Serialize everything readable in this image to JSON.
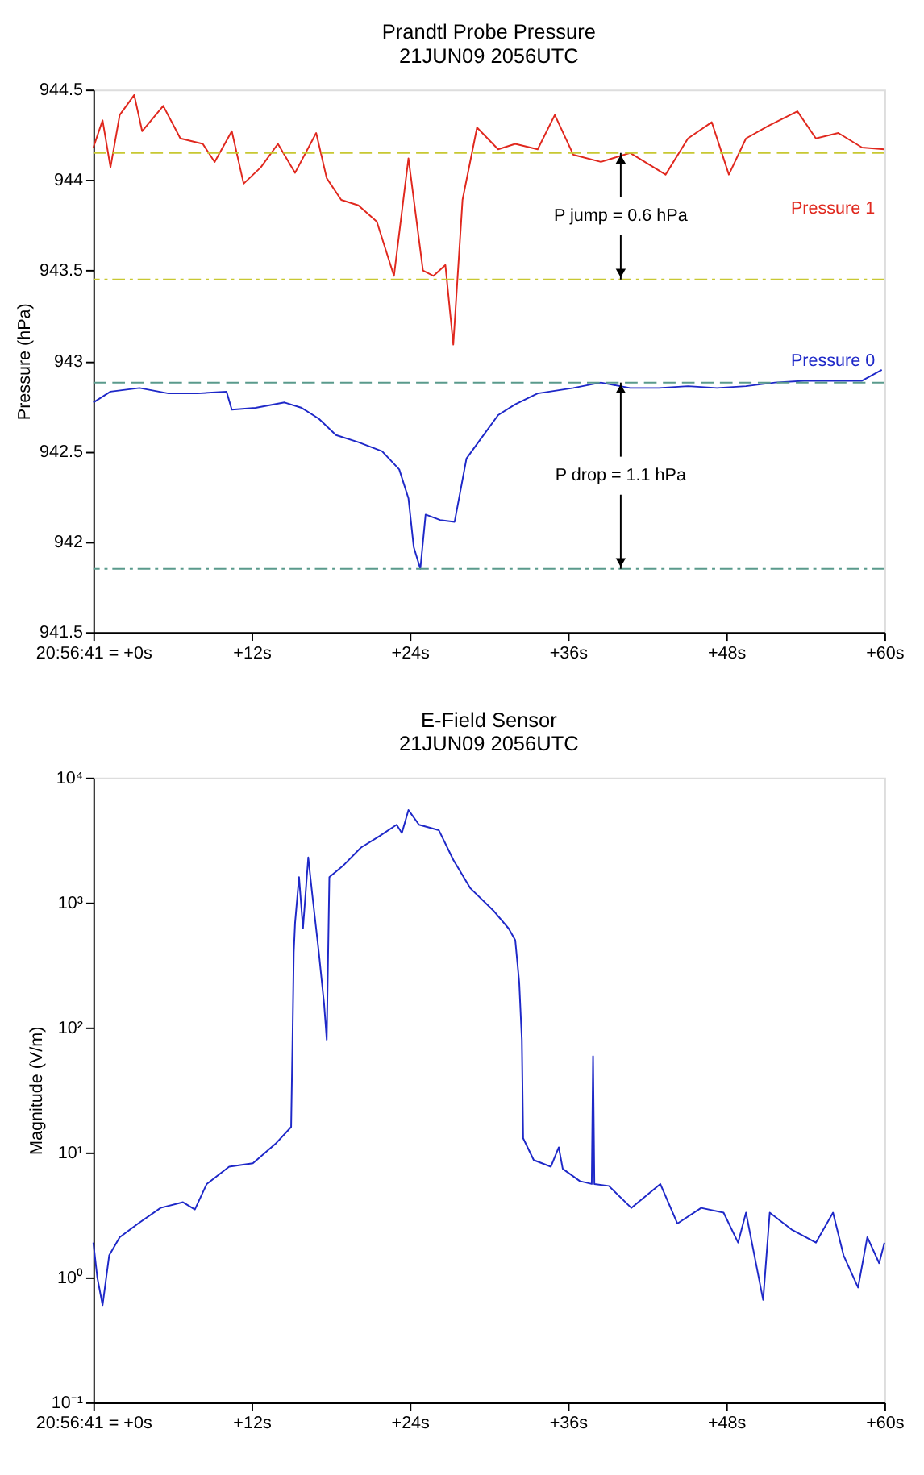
{
  "chart_data": [
    {
      "type": "line",
      "title": "Prandtl Probe Pressure",
      "subtitle": "21JUN09 2056UTC",
      "ylabel": "Pressure (hPa)",
      "xlim": [
        0,
        60
      ],
      "xticks": [
        {
          "value": 0,
          "label": "20:56:41 = +0s"
        },
        {
          "value": 12,
          "label": "+12s"
        },
        {
          "value": 24,
          "label": "+24s"
        },
        {
          "value": 36,
          "label": "+36s"
        },
        {
          "value": 48,
          "label": "+48s"
        },
        {
          "value": 60,
          "label": "+60s"
        }
      ],
      "ylim": [
        941.5,
        944.5
      ],
      "yticks": [
        941.5,
        942,
        942.5,
        943,
        943.5,
        944,
        944.5
      ],
      "grid": false,
      "legend": false,
      "marker": "none",
      "line_style": "solid",
      "series": [
        {
          "name": "Pressure 1",
          "color": "#e0281e",
          "x": [
            0,
            0.7,
            1.3,
            2.0,
            3.1,
            3.7,
            5.3,
            6.6,
            8.3,
            9.2,
            10.5,
            11.4,
            12.7,
            14.0,
            15.3,
            16.9,
            17.7,
            18.8,
            20.1,
            21.5,
            22.8,
            23.9,
            25.0,
            25.8,
            26.7,
            27.3,
            28.0,
            29.1,
            30.7,
            32.0,
            33.7,
            35.0,
            36.4,
            38.5,
            40.7,
            43.4,
            45.1,
            46.9,
            48.2,
            49.5,
            51.2,
            53.4,
            54.8,
            56.5,
            58.3,
            60
          ],
          "values": [
            944.18,
            944.33,
            944.07,
            944.36,
            944.47,
            944.27,
            944.41,
            944.23,
            944.2,
            944.1,
            944.27,
            943.98,
            944.07,
            944.2,
            944.04,
            944.26,
            944.01,
            943.89,
            943.86,
            943.77,
            943.47,
            944.12,
            943.5,
            943.47,
            943.53,
            943.09,
            943.89,
            944.29,
            944.17,
            944.2,
            944.17,
            944.36,
            944.14,
            944.1,
            944.15,
            944.03,
            944.23,
            944.32,
            944.03,
            944.23,
            944.3,
            944.38,
            944.23,
            944.26,
            944.18,
            944.17
          ]
        },
        {
          "name": "Pressure 0",
          "color": "#1e28c8",
          "x": [
            0,
            1.3,
            3.5,
            5.7,
            7.9,
            10.1,
            10.5,
            12.3,
            14.5,
            15.8,
            17.1,
            18.4,
            20.1,
            21.9,
            23.2,
            23.9,
            24.3,
            24.8,
            25.2,
            26.3,
            27.4,
            28.3,
            29.3,
            30.7,
            32.0,
            33.7,
            36.4,
            38.5,
            40.7,
            42.9,
            45.1,
            47.3,
            49.5,
            51.7,
            53.9,
            56.1,
            58.3,
            59.8
          ],
          "values": [
            942.77,
            942.83,
            942.85,
            942.82,
            942.82,
            942.83,
            942.73,
            942.74,
            942.77,
            942.74,
            942.68,
            942.59,
            942.55,
            942.5,
            942.4,
            942.24,
            941.97,
            941.85,
            942.15,
            942.12,
            942.11,
            942.46,
            942.56,
            942.7,
            942.76,
            942.82,
            942.85,
            942.88,
            942.85,
            942.85,
            942.86,
            942.85,
            942.86,
            942.88,
            942.89,
            942.89,
            942.89,
            942.95
          ]
        }
      ],
      "ref_lines": [
        {
          "axis": "y",
          "value": 944.15,
          "color": "#c8c832",
          "line_style": "dashed"
        },
        {
          "axis": "y",
          "value": 943.45,
          "color": "#c8c832",
          "line_style": "dashdot"
        },
        {
          "axis": "y",
          "value": 942.88,
          "color": "#5a9a8c",
          "line_style": "dashed"
        },
        {
          "axis": "y",
          "value": 941.85,
          "color": "#5a9a8c",
          "line_style": "dashdot"
        }
      ],
      "annotations": [
        {
          "text": "P jump = 0.6 hPa",
          "x": 40,
          "y": 944.15
        },
        {
          "text": "P drop = 1.1 hPa",
          "x": 40,
          "y": 942.88
        }
      ]
    },
    {
      "type": "line",
      "title": "E-Field Sensor",
      "subtitle": "21JUN09 2056UTC",
      "ylabel": "Magnitude (V/m)",
      "log": true,
      "xlim": [
        0,
        60
      ],
      "xticks": [
        {
          "value": 0,
          "label": "20:56:41 = +0s"
        },
        {
          "value": 12,
          "label": "+12s"
        },
        {
          "value": 24,
          "label": "+24s"
        },
        {
          "value": 36,
          "label": "+36s"
        },
        {
          "value": 48,
          "label": "+48s"
        },
        {
          "value": 60,
          "label": "+60s"
        }
      ],
      "ylim": [
        0.1,
        10000
      ],
      "yticks": [
        {
          "value": 0.1,
          "label": "10⁻¹"
        },
        {
          "value": 1,
          "label": "10⁰"
        },
        {
          "value": 10,
          "label": "10¹"
        },
        {
          "value": 100,
          "label": "10²"
        },
        {
          "value": 1000,
          "label": "10³"
        },
        {
          "value": 10000,
          "label": "10⁴"
        }
      ],
      "grid": false,
      "legend": false,
      "marker": "none",
      "line_style": "solid",
      "series": [
        {
          "color": "#1e28c8",
          "x": [
            0,
            0.3,
            0.7,
            1.2,
            2.0,
            3.4,
            5.1,
            6.8,
            7.7,
            8.6,
            10.3,
            12.1,
            13.8,
            15.0,
            15.1,
            15.2,
            15.3,
            15.6,
            15.9,
            16.3,
            16.6,
            17.1,
            17.5,
            17.7,
            17.9,
            19.0,
            20.3,
            21.7,
            23.0,
            23.4,
            23.9,
            24.7,
            26.2,
            27.3,
            28.6,
            30.4,
            31.5,
            32.0,
            32.3,
            32.5,
            32.6,
            33.4,
            34.7,
            35.3,
            35.6,
            36.9,
            37.8,
            37.9,
            38.0,
            39.1,
            40.8,
            43.0,
            44.3,
            46.1,
            47.8,
            48.9,
            49.5,
            50.8,
            51.3,
            53.0,
            54.8,
            56.1,
            56.9,
            58.0,
            58.7,
            59.6,
            60
          ],
          "values": [
            1.9,
            1.0,
            0.6,
            1.5,
            2.1,
            2.7,
            3.6,
            4.0,
            3.5,
            5.6,
            7.7,
            8.2,
            11.7,
            16,
            72,
            400,
            690,
            1600,
            620,
            2300,
            1170,
            400,
            155,
            80,
            1600,
            2000,
            2760,
            3400,
            4200,
            3600,
            5500,
            4200,
            3800,
            2200,
            1300,
            850,
            620,
            500,
            230,
            80,
            13,
            8.7,
            7.7,
            11,
            7.4,
            5.9,
            5.6,
            59,
            5.6,
            5.4,
            3.6,
            5.6,
            2.7,
            3.6,
            3.3,
            1.9,
            3.3,
            0.66,
            3.3,
            2.4,
            1.9,
            3.3,
            1.5,
            0.83,
            2.1,
            1.3,
            1.9
          ]
        }
      ]
    }
  ]
}
